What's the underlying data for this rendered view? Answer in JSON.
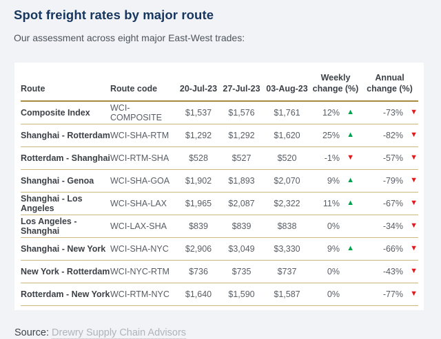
{
  "page": {
    "title": "Spot freight rates by major route",
    "subtitle": "Our assessment across eight major East-West trades:",
    "source_label": "Source:",
    "source_link_text": "Drewry Supply Chain Advisors"
  },
  "colors": {
    "title_navy": "#17365f",
    "header_rule_gold": "#a5893c",
    "row_rule_gold": "#cdb87b",
    "up_green": "#00a14b",
    "down_red": "#e3191d",
    "page_background": "#f1f3f6",
    "card_background": "#ffffff"
  },
  "table": {
    "columns": [
      "Route",
      "Route code",
      "20-Jul-23",
      "27-Jul-23",
      "03-Aug-23",
      "Weekly change (%)",
      "Annual change (%)"
    ],
    "rows": [
      {
        "route": "Composite Index",
        "code": "WCI-COMPOSITE",
        "rate_20jul": "$1,537",
        "rate_27jul": "$1,576",
        "rate_03aug": "$1,761",
        "weekly": {
          "value": "12%",
          "dir": "up",
          "arrow": "▲"
        },
        "annual": {
          "value": "-73%",
          "dir": "down",
          "arrow": "▼"
        }
      },
      {
        "route": "Shanghai - Rotterdam",
        "code": "WCI-SHA-RTM",
        "rate_20jul": "$1,292",
        "rate_27jul": "$1,292",
        "rate_03aug": "$1,620",
        "weekly": {
          "value": "25%",
          "dir": "up",
          "arrow": "▲"
        },
        "annual": {
          "value": "-82%",
          "dir": "down",
          "arrow": "▼"
        }
      },
      {
        "route": "Rotterdam - Shanghai",
        "code": "WCI-RTM-SHA",
        "rate_20jul": "$528",
        "rate_27jul": "$527",
        "rate_03aug": "$520",
        "weekly": {
          "value": "-1%",
          "dir": "down",
          "arrow": "▼"
        },
        "annual": {
          "value": "-57%",
          "dir": "down",
          "arrow": "▼"
        }
      },
      {
        "route": "Shanghai - Genoa",
        "code": "WCI-SHA-GOA",
        "rate_20jul": "$1,902",
        "rate_27jul": "$1,893",
        "rate_03aug": "$2,070",
        "weekly": {
          "value": "9%",
          "dir": "up",
          "arrow": "▲"
        },
        "annual": {
          "value": "-79%",
          "dir": "down",
          "arrow": "▼"
        }
      },
      {
        "route": "Shanghai - Los Angeles",
        "code": "WCI-SHA-LAX",
        "rate_20jul": "$1,965",
        "rate_27jul": "$2,087",
        "rate_03aug": "$2,322",
        "weekly": {
          "value": "11%",
          "dir": "up",
          "arrow": "▲"
        },
        "annual": {
          "value": "-67%",
          "dir": "down",
          "arrow": "▼"
        }
      },
      {
        "route": "Los Angeles - Shanghai",
        "code": "WCI-LAX-SHA",
        "rate_20jul": "$839",
        "rate_27jul": "$839",
        "rate_03aug": "$838",
        "weekly": {
          "value": "0%",
          "dir": "none",
          "arrow": ""
        },
        "annual": {
          "value": "-34%",
          "dir": "down",
          "arrow": "▼"
        }
      },
      {
        "route": "Shanghai - New York",
        "code": "WCI-SHA-NYC",
        "rate_20jul": "$2,906",
        "rate_27jul": "$3,049",
        "rate_03aug": "$3,330",
        "weekly": {
          "value": "9%",
          "dir": "up",
          "arrow": "▲"
        },
        "annual": {
          "value": "-66%",
          "dir": "down",
          "arrow": "▼"
        }
      },
      {
        "route": "New York - Rotterdam",
        "code": "WCI-NYC-RTM",
        "rate_20jul": "$736",
        "rate_27jul": "$735",
        "rate_03aug": "$737",
        "weekly": {
          "value": "0%",
          "dir": "none",
          "arrow": ""
        },
        "annual": {
          "value": "-43%",
          "dir": "down",
          "arrow": "▼"
        }
      },
      {
        "route": "Rotterdam - New York",
        "code": "WCI-RTM-NYC",
        "rate_20jul": "$1,640",
        "rate_27jul": "$1,590",
        "rate_03aug": "$1,587",
        "weekly": {
          "value": "0%",
          "dir": "none",
          "arrow": ""
        },
        "annual": {
          "value": "-77%",
          "dir": "down",
          "arrow": "▼"
        }
      }
    ]
  },
  "chart_data": {
    "type": "table",
    "title": "Spot freight rates by major route",
    "columns": [
      "Route",
      "Route code",
      "20-Jul-23",
      "27-Jul-23",
      "03-Aug-23",
      "Weekly change (%)",
      "Annual change (%)"
    ],
    "matrix": [
      [
        "Composite Index",
        "WCI-COMPOSITE",
        1537,
        1576,
        1761,
        12,
        -73
      ],
      [
        "Shanghai - Rotterdam",
        "WCI-SHA-RTM",
        1292,
        1292,
        1620,
        25,
        -82
      ],
      [
        "Rotterdam - Shanghai",
        "WCI-RTM-SHA",
        528,
        527,
        520,
        -1,
        -57
      ],
      [
        "Shanghai - Genoa",
        "WCI-SHA-GOA",
        1902,
        1893,
        2070,
        9,
        -79
      ],
      [
        "Shanghai - Los Angeles",
        "WCI-SHA-LAX",
        1965,
        2087,
        2322,
        11,
        -67
      ],
      [
        "Los Angeles - Shanghai",
        "WCI-LAX-SHA",
        839,
        839,
        838,
        0,
        -34
      ],
      [
        "Shanghai - New York",
        "WCI-SHA-NYC",
        2906,
        3049,
        3330,
        9,
        -66
      ],
      [
        "New York - Rotterdam",
        "WCI-NYC-RTM",
        736,
        735,
        737,
        0,
        -43
      ],
      [
        "Rotterdam - New York",
        "WCI-RTM-NYC",
        1640,
        1590,
        1587,
        0,
        -77
      ]
    ]
  }
}
